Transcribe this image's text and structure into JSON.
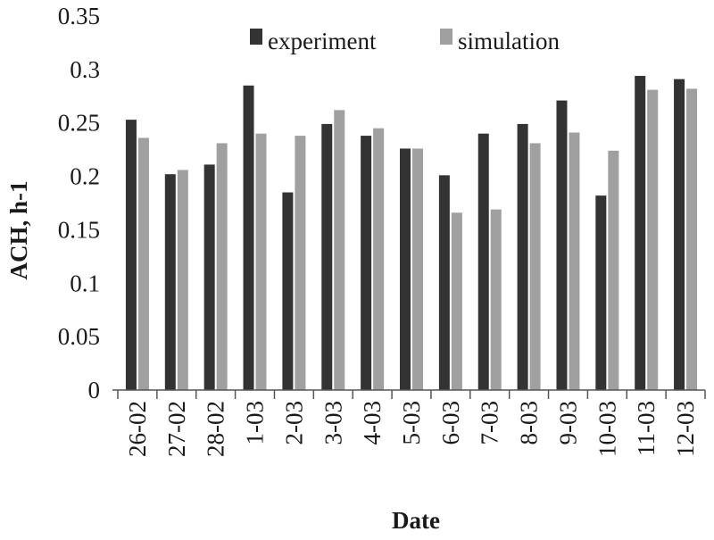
{
  "chart_data": {
    "type": "bar",
    "title": "",
    "xlabel": "Date",
    "ylabel": "ACH, h-1",
    "ylim": [
      0,
      0.35
    ],
    "yticks": [
      "0",
      "0.05",
      "0.1",
      "0.15",
      "0.2",
      "0.25",
      "0.3",
      "0.35"
    ],
    "ytick_values": [
      0,
      0.05,
      0.1,
      0.15,
      0.2,
      0.25,
      0.3,
      0.35
    ],
    "grid": false,
    "legend_position": "top",
    "categories": [
      "26-02",
      "27-02",
      "28-02",
      "1-03",
      "2-03",
      "3-03",
      "4-03",
      "5-03",
      "6-03",
      "7-03",
      "8-03",
      "9-03",
      "10-03",
      "11-03",
      "12-03"
    ],
    "series": [
      {
        "name": "experiment",
        "color": "#333333",
        "values": [
          0.253,
          0.202,
          0.211,
          0.285,
          0.185,
          0.249,
          0.238,
          0.226,
          0.201,
          0.24,
          0.249,
          0.271,
          0.182,
          0.294,
          0.291
        ]
      },
      {
        "name": "simulation",
        "color": "#a0a0a0",
        "values": [
          0.236,
          0.206,
          0.231,
          0.24,
          0.238,
          0.262,
          0.245,
          0.226,
          0.166,
          0.169,
          0.231,
          0.241,
          0.224,
          0.281,
          0.282
        ]
      }
    ]
  }
}
